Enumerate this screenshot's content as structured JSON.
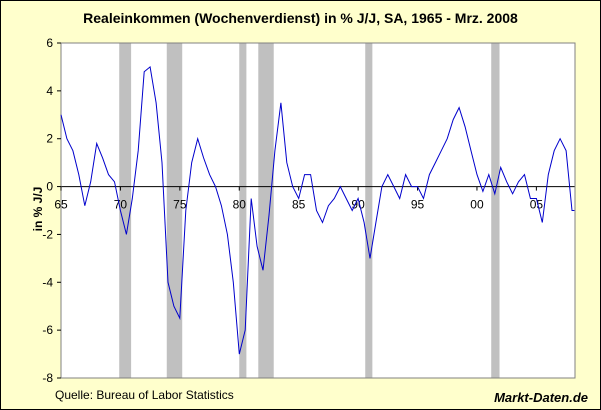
{
  "title": "Realeinkommen (Wochenverdienst) in % J/J, SA, 1965 - Mrz. 2008",
  "ylabel": "in % J/J",
  "source": "Quelle: Bureau of Labor Statistics",
  "brand": "Markt-Daten.de",
  "colors": {
    "background": "#ffffcc",
    "plot": "#ffffff",
    "line": "#0000cc",
    "recession": "#c0c0c0"
  },
  "chart_data": {
    "type": "line",
    "xlim": [
      1965,
      2008.25
    ],
    "ylim": [
      -8,
      6
    ],
    "y_ticks": [
      6,
      4,
      2,
      0,
      -2,
      -4,
      -6,
      -8
    ],
    "x_tick_labels": [
      "65",
      "70",
      "75",
      "80",
      "85",
      "90",
      "95",
      "00",
      "05"
    ],
    "x_tick_years": [
      1965,
      1970,
      1975,
      1980,
      1985,
      1990,
      1995,
      2000,
      2005
    ],
    "grid": false,
    "recessions": [
      [
        1969.9,
        1970.9
      ],
      [
        1973.9,
        1975.2
      ],
      [
        1980.0,
        1980.6
      ],
      [
        1981.6,
        1982.9
      ],
      [
        1990.6,
        1991.2
      ],
      [
        2001.2,
        2001.9
      ]
    ],
    "series": [
      {
        "x": [
          1965.0,
          1965.5,
          1966.0,
          1966.5,
          1967.0,
          1967.5,
          1968.0,
          1968.5,
          1969.0,
          1969.5,
          1970.0,
          1970.5,
          1971.0,
          1971.5,
          1972.0,
          1972.5,
          1973.0,
          1973.5,
          1974.0,
          1974.5,
          1975.0,
          1975.5,
          1976.0,
          1976.5,
          1977.0,
          1977.5,
          1978.0,
          1978.5,
          1979.0,
          1979.5,
          1980.0,
          1980.5,
          1981.0,
          1981.5,
          1982.0,
          1982.5,
          1983.0,
          1983.5,
          1984.0,
          1984.5,
          1985.0,
          1985.5,
          1986.0,
          1986.5,
          1987.0,
          1987.5,
          1988.0,
          1988.5,
          1989.0,
          1989.5,
          1990.0,
          1990.5,
          1991.0,
          1991.5,
          1992.0,
          1992.5,
          1993.0,
          1993.5,
          1994.0,
          1994.5,
          1995.0,
          1995.5,
          1996.0,
          1996.5,
          1997.0,
          1997.5,
          1998.0,
          1998.5,
          1999.0,
          1999.5,
          2000.0,
          2000.5,
          2001.0,
          2001.5,
          2002.0,
          2002.5,
          2003.0,
          2003.5,
          2004.0,
          2004.5,
          2005.0,
          2005.5,
          2006.0,
          2006.5,
          2007.0,
          2007.5,
          2008.0,
          2008.2
        ],
        "y": [
          3.0,
          2.0,
          1.5,
          0.5,
          -0.8,
          0.2,
          1.8,
          1.2,
          0.5,
          0.2,
          -1.0,
          -2.0,
          -0.5,
          1.5,
          4.8,
          5.0,
          3.5,
          1.0,
          -4.0,
          -5.0,
          -5.5,
          -1.0,
          1.0,
          2.0,
          1.2,
          0.5,
          0.0,
          -0.8,
          -2.0,
          -4.0,
          -7.0,
          -6.0,
          -0.5,
          -2.5,
          -3.5,
          -1.2,
          1.5,
          3.5,
          1.0,
          0.0,
          -0.5,
          0.5,
          0.5,
          -1.0,
          -1.5,
          -0.8,
          -0.5,
          0.0,
          -0.5,
          -1.0,
          -0.5,
          -1.5,
          -3.0,
          -1.5,
          0.0,
          0.5,
          0.0,
          -0.5,
          0.5,
          0.0,
          0.0,
          -0.5,
          0.5,
          1.0,
          1.5,
          2.0,
          2.8,
          3.3,
          2.5,
          1.5,
          0.5,
          -0.2,
          0.5,
          -0.3,
          0.8,
          0.2,
          -0.3,
          0.2,
          0.5,
          -0.5,
          -0.5,
          -1.5,
          0.5,
          1.5,
          2.0,
          1.5,
          -1.0,
          -1.0
        ]
      }
    ]
  }
}
